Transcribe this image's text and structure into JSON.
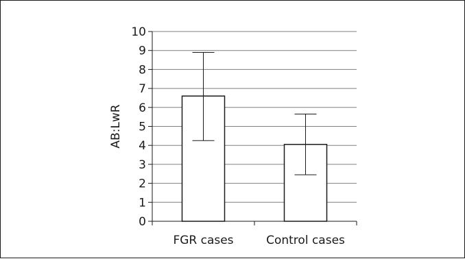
{
  "chart_data": {
    "type": "bar",
    "categories": [
      "FGR cases",
      "Control cases"
    ],
    "values": [
      6.6,
      4.05
    ],
    "error_bars": {
      "upper": [
        8.9,
        5.65
      ],
      "lower": [
        4.25,
        2.45
      ]
    },
    "ylabel": "AB:LwR",
    "xlabel": "",
    "ylim": [
      0,
      10
    ],
    "y_ticks": [
      0,
      1,
      2,
      3,
      4,
      5,
      6,
      7,
      8,
      9,
      10
    ],
    "grid": "horizontal",
    "bar_fill": "#ffffff",
    "bar_stroke": "#1a1a1a",
    "grid_color": "#7f7f7f"
  }
}
